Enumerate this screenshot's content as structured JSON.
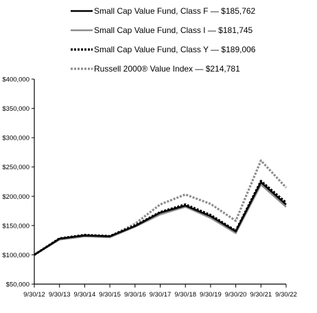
{
  "chart_data": {
    "type": "line",
    "title": "",
    "xlabel": "",
    "ylabel": "",
    "ylim": [
      50000,
      400000
    ],
    "yticks": [
      "$50,000",
      "$100,000",
      "$150,000",
      "$200,000",
      "$250,000",
      "$300,000",
      "$350,000",
      "$400,000"
    ],
    "ytick_values": [
      50000,
      100000,
      150000,
      200000,
      250000,
      300000,
      350000,
      400000
    ],
    "categories": [
      "9/30/12",
      "9/30/13",
      "9/30/14",
      "9/30/15",
      "9/30/16",
      "9/30/17",
      "9/30/18",
      "9/30/19",
      "9/30/20",
      "9/30/21",
      "9/30/22"
    ],
    "grid": false,
    "legend_position": "top",
    "series": [
      {
        "name": "Small Cap Value Fund, Class F — $185,762",
        "color": "#000000",
        "style": "solid",
        "values": [
          100000,
          127500,
          133000,
          131500,
          149000,
          172000,
          184000,
          166000,
          140000,
          224000,
          185762
        ]
      },
      {
        "name": "Small Cap Value Fund, Class I — $181,745",
        "color": "#8c8c8c",
        "style": "solid",
        "values": [
          100000,
          126000,
          131500,
          130000,
          148000,
          169000,
          182000,
          163000,
          137000,
          220000,
          181745
        ]
      },
      {
        "name": "Small Cap Value Fund, Class Y — $189,006",
        "color": "#000000",
        "style": "dotted",
        "values": [
          100000,
          128000,
          134000,
          132000,
          150000,
          173000,
          186000,
          168000,
          141000,
          226000,
          189006
        ]
      },
      {
        "name": "Russell 2000® Value Index — $214,781",
        "color": "#8c8c8c",
        "style": "dotted",
        "values": [
          100000,
          126500,
          133500,
          131000,
          153000,
          186000,
          203000,
          187000,
          158000,
          261000,
          214781
        ]
      }
    ]
  }
}
